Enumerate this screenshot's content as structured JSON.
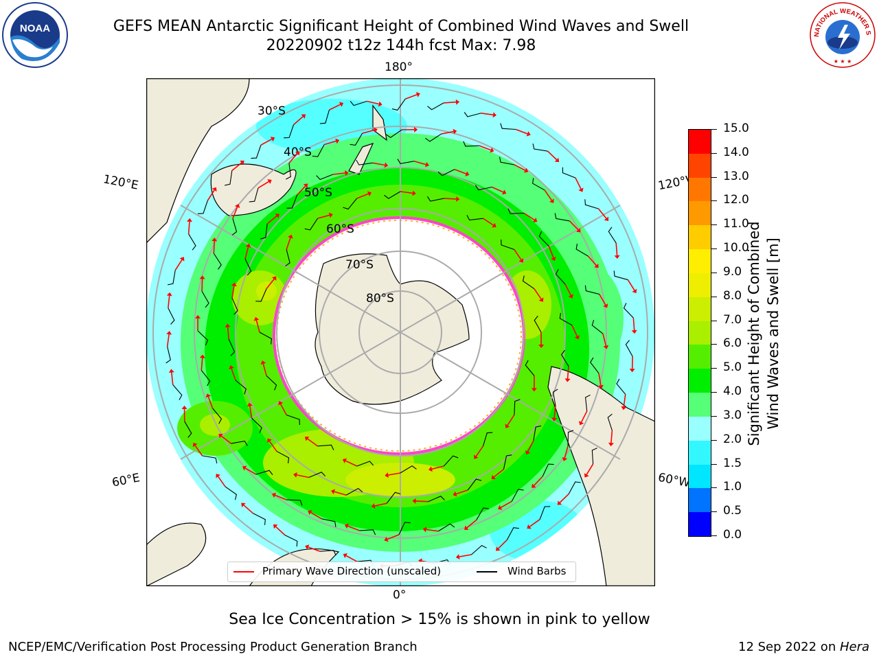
{
  "title": {
    "line1": "GEFS MEAN Antarctic Significant Height of Combined Wind Waves and Swell",
    "line2": "20220902 t12z 144h fcst   Max: 7.98"
  },
  "logos": {
    "noaa_text": "NOAA",
    "nws_text": "NATIONAL WEATHER SERVICE"
  },
  "map": {
    "longitude_labels": {
      "top": "180°",
      "bottom": "0°",
      "upper_left": "120°E",
      "lower_left": "60°E",
      "upper_right": "120°W",
      "lower_right": "60°W"
    },
    "latitude_labels": [
      "30°S",
      "40°S",
      "50°S",
      "60°S",
      "70°S",
      "80°S"
    ]
  },
  "colorbar": {
    "title_line1": "Significant Height of Combined",
    "title_line2": "Wind Waves and Swell [m]",
    "ticks": [
      "0.0",
      "0.5",
      "1.0",
      "1.5",
      "2.0",
      "3.0",
      "4.0",
      "5.0",
      "6.0",
      "7.0",
      "8.0",
      "9.0",
      "10.0",
      "11.0",
      "12.0",
      "13.0",
      "14.0",
      "15.0"
    ],
    "colors": [
      "#0000ff",
      "#0073ff",
      "#00e6ff",
      "#33f7ff",
      "#99ffff",
      "#55ff77",
      "#00ee00",
      "#55ee00",
      "#aaee00",
      "#ccee00",
      "#eeee00",
      "#ffee00",
      "#ffcc00",
      "#ff9900",
      "#ff7700",
      "#ff4400",
      "#ff0000"
    ]
  },
  "legend": {
    "primary_wave": "Primary Wave Direction (unscaled)",
    "wind_barbs": "Wind Barbs",
    "primary_wave_color": "#ff0000",
    "wind_barbs_color": "#000000"
  },
  "footer": {
    "ice_note": "Sea Ice Concentration > 15% is shown in pink to yellow",
    "credit": "NCEP/EMC/Verification Post Processing Product Generation Branch",
    "date_prefix": "12 Sep 2022 on ",
    "host": "Hera"
  }
}
